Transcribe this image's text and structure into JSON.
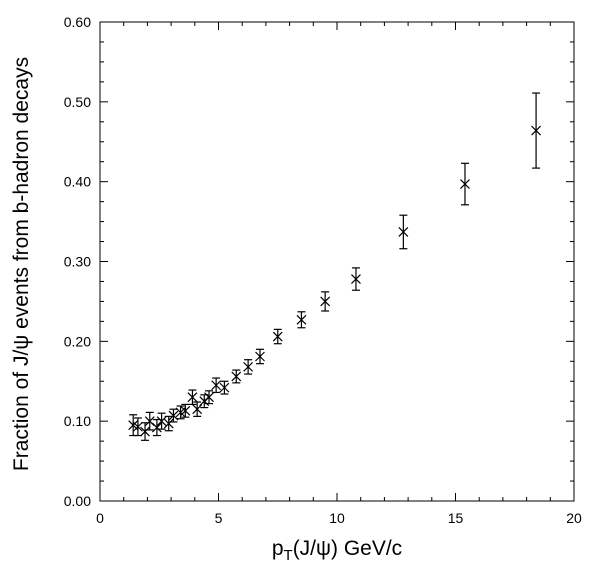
{
  "chart_data": {
    "type": "scatter",
    "title": "",
    "xlabel": {
      "main": "p",
      "sub": "T",
      "rest": "(J/ψ) GeV/c"
    },
    "ylabel": "Fraction of J/ψ events from b-hadron decays",
    "xlim": [
      0,
      20
    ],
    "ylim": [
      0.0,
      0.6
    ],
    "x_ticks": [
      0,
      5,
      10,
      15,
      20
    ],
    "x_tick_labels": [
      "0",
      "5",
      "10",
      "15",
      "20"
    ],
    "y_ticks": [
      0.0,
      0.1,
      0.2,
      0.3,
      0.4,
      0.5,
      0.6
    ],
    "y_tick_labels": [
      "0.00",
      "0.10",
      "0.20",
      "0.30",
      "0.40",
      "0.50",
      "0.60"
    ],
    "grid": false,
    "marker": "x",
    "color": "#000000",
    "series": [
      {
        "points": [
          {
            "x": 1.4,
            "y": 0.095,
            "err": 0.013
          },
          {
            "x": 1.6,
            "y": 0.093,
            "err": 0.011
          },
          {
            "x": 1.9,
            "y": 0.087,
            "err": 0.011
          },
          {
            "x": 2.1,
            "y": 0.1,
            "err": 0.011
          },
          {
            "x": 2.4,
            "y": 0.092,
            "err": 0.01
          },
          {
            "x": 2.6,
            "y": 0.1,
            "err": 0.01
          },
          {
            "x": 2.9,
            "y": 0.097,
            "err": 0.009
          },
          {
            "x": 3.1,
            "y": 0.107,
            "err": 0.008
          },
          {
            "x": 3.4,
            "y": 0.111,
            "err": 0.008
          },
          {
            "x": 3.6,
            "y": 0.113,
            "err": 0.008
          },
          {
            "x": 3.9,
            "y": 0.13,
            "err": 0.009
          },
          {
            "x": 4.1,
            "y": 0.115,
            "err": 0.009
          },
          {
            "x": 4.4,
            "y": 0.125,
            "err": 0.008
          },
          {
            "x": 4.6,
            "y": 0.13,
            "err": 0.008
          },
          {
            "x": 4.9,
            "y": 0.145,
            "err": 0.009
          },
          {
            "x": 5.25,
            "y": 0.142,
            "err": 0.008
          },
          {
            "x": 5.75,
            "y": 0.156,
            "err": 0.008
          },
          {
            "x": 6.25,
            "y": 0.168,
            "err": 0.009
          },
          {
            "x": 6.75,
            "y": 0.181,
            "err": 0.009
          },
          {
            "x": 7.5,
            "y": 0.206,
            "err": 0.009
          },
          {
            "x": 8.5,
            "y": 0.227,
            "err": 0.01
          },
          {
            "x": 9.5,
            "y": 0.25,
            "err": 0.012
          },
          {
            "x": 10.8,
            "y": 0.278,
            "err": 0.014
          },
          {
            "x": 12.8,
            "y": 0.337,
            "err": 0.021
          },
          {
            "x": 15.4,
            "y": 0.397,
            "err": 0.026
          },
          {
            "x": 18.4,
            "y": 0.464,
            "err": 0.047
          }
        ]
      }
    ]
  }
}
